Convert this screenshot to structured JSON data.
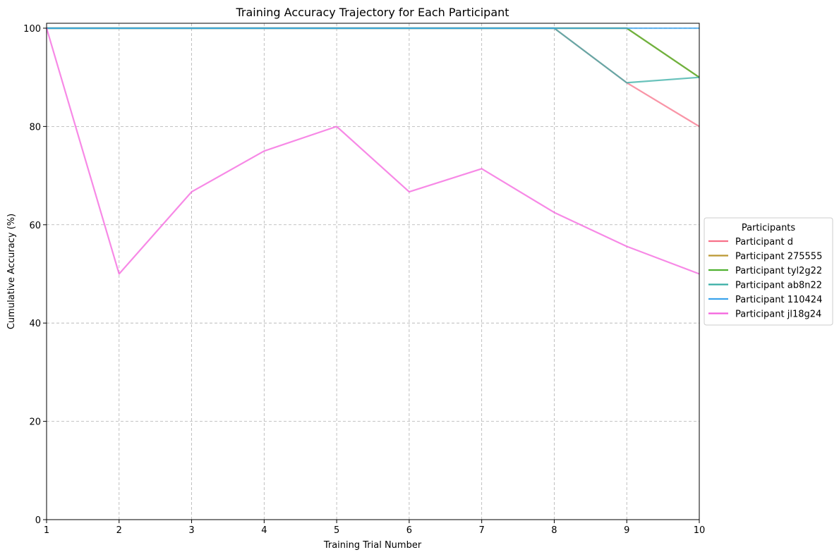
{
  "chart_data": {
    "type": "line",
    "title": "Training Accuracy Trajectory for Each Participant",
    "xlabel": "Training Trial Number",
    "ylabel": "Cumulative Accuracy (%)",
    "x": [
      1,
      2,
      3,
      4,
      5,
      6,
      7,
      8,
      9,
      10
    ],
    "xticks": [
      "1",
      "2",
      "3",
      "4",
      "5",
      "6",
      "7",
      "8",
      "9",
      "10"
    ],
    "yticks": [
      "0",
      "20",
      "40",
      "60",
      "80",
      "100"
    ],
    "xlim": [
      1,
      10
    ],
    "ylim": [
      0,
      101
    ],
    "grid": true,
    "legend": {
      "title": "Participants",
      "placement": "center-right-outside"
    },
    "series": [
      {
        "name": "Participant d",
        "color": "#f77189",
        "values": [
          100,
          100,
          100,
          100,
          100,
          100,
          100,
          100,
          88.9,
          80
        ]
      },
      {
        "name": "Participant 275555",
        "color": "#bb9832",
        "values": [
          100,
          100,
          100,
          100,
          100,
          100,
          100,
          100,
          100,
          90
        ]
      },
      {
        "name": "Participant tyl2g22",
        "color": "#50b131",
        "values": [
          100,
          100,
          100,
          100,
          100,
          100,
          100,
          100,
          100,
          90
        ]
      },
      {
        "name": "Participant ab8n22",
        "color": "#36ada4",
        "values": [
          100,
          100,
          100,
          100,
          100,
          100,
          100,
          100,
          88.9,
          90
        ]
      },
      {
        "name": "Participant 110424",
        "color": "#3ba3ec",
        "values": [
          100,
          100,
          100,
          100,
          100,
          100,
          100,
          100,
          100,
          100
        ]
      },
      {
        "name": "Participant jl18g24",
        "color": "#f461dd",
        "values": [
          100,
          50,
          66.7,
          75,
          80,
          66.7,
          71.4,
          62.5,
          55.6,
          50
        ]
      }
    ]
  }
}
